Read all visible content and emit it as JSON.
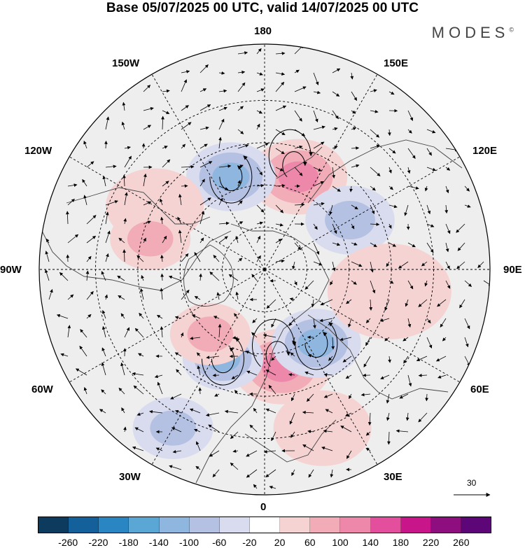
{
  "title": "Base 05/07/2025 00 UTC, valid 14/07/2025 00 UTC",
  "brand": "MODES",
  "brand_mark": "©",
  "longitude_labels": {
    "top": "180",
    "top_left": "150W",
    "top_right": "150E",
    "upper_left": "120W",
    "upper_right": "120E",
    "left": "90W",
    "right": "90E",
    "lower_left": "60W",
    "lower_right": "60E",
    "bottom_left": "30W",
    "bottom_right": "30E",
    "bottom": "0"
  },
  "reference_vector": {
    "label": "30"
  },
  "colorbar": {
    "colors": [
      "#0d3b5e",
      "#13609a",
      "#2a86c3",
      "#5aa7d6",
      "#8fb6de",
      "#b4c1e2",
      "#d9dcef",
      "#ffffff",
      "#f6d3d3",
      "#f1acb8",
      "#ee88ab",
      "#e34f9d",
      "#c8158a",
      "#8e0d7f",
      "#5c0678"
    ],
    "labels": [
      "-260",
      "-220",
      "-180",
      "-140",
      "-100",
      "-60",
      "-20",
      "20",
      "60",
      "100",
      "140",
      "180",
      "220",
      "260"
    ]
  },
  "anomaly_features": [
    {
      "lon": 160,
      "lat": 55,
      "value": 150,
      "size": 1.0
    },
    {
      "lon": -160,
      "lat": 55,
      "value": -150,
      "size": 0.9
    },
    {
      "lon": 120,
      "lat": 55,
      "value": -110,
      "size": 0.9
    },
    {
      "lon": -120,
      "lat": 45,
      "value": 70,
      "size": 1.0
    },
    {
      "lon": -105,
      "lat": 48,
      "value": 90,
      "size": 0.8
    },
    {
      "lon": 10,
      "lat": 55,
      "value": 130,
      "size": 1.0
    },
    {
      "lon": 35,
      "lat": 58,
      "value": -140,
      "size": 0.9
    },
    {
      "lon": -25,
      "lat": 55,
      "value": -130,
      "size": 0.8
    },
    {
      "lon": -40,
      "lat": 60,
      "value": 80,
      "size": 0.8
    },
    {
      "lon": 80,
      "lat": 45,
      "value": 60,
      "size": 1.3
    },
    {
      "lon": -30,
      "lat": 25,
      "value": -80,
      "size": 0.8
    },
    {
      "lon": 20,
      "lat": 30,
      "value": 60,
      "size": 1.0
    }
  ]
}
